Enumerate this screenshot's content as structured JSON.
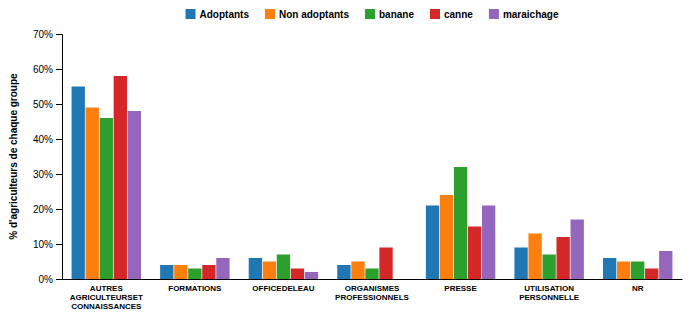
{
  "chart_data": {
    "type": "bar",
    "categories": [
      "AUTRES\nAGRICULTEURSET\nCONNAISSANCES",
      "FORMATIONS",
      "OFFICEDELEAU",
      "ORGANISMES\nPROFESSIONNELS",
      "PRESSE",
      "UTILISATION\nPERSONNELLE",
      "NR"
    ],
    "series": [
      {
        "name": "Adoptants",
        "values": [
          55,
          4,
          6,
          4,
          21,
          9,
          6
        ]
      },
      {
        "name": "Non adoptants",
        "values": [
          49,
          4,
          5,
          5,
          24,
          13,
          5
        ]
      },
      {
        "name": "banane",
        "values": [
          46,
          3,
          7,
          3,
          32,
          7,
          5
        ]
      },
      {
        "name": "canne",
        "values": [
          58,
          4,
          3,
          9,
          15,
          12,
          3
        ]
      },
      {
        "name": "maraichage",
        "values": [
          48,
          6,
          2,
          0,
          21,
          17,
          8
        ]
      }
    ],
    "y_label": "% d'agriculteurs de chaque groupe",
    "ylim": [
      0,
      70
    ],
    "yticks": [
      {
        "value": 0,
        "label": "0%"
      },
      {
        "value": 10,
        "label": "10%"
      },
      {
        "value": 20,
        "label": "20%"
      },
      {
        "value": 30,
        "label": "30%"
      },
      {
        "value": 40,
        "label": "40%"
      },
      {
        "value": 50,
        "label": "50%"
      },
      {
        "value": 60,
        "label": "60%"
      },
      {
        "value": 70,
        "label": "70%"
      }
    ],
    "grid": false,
    "legend": "top"
  }
}
